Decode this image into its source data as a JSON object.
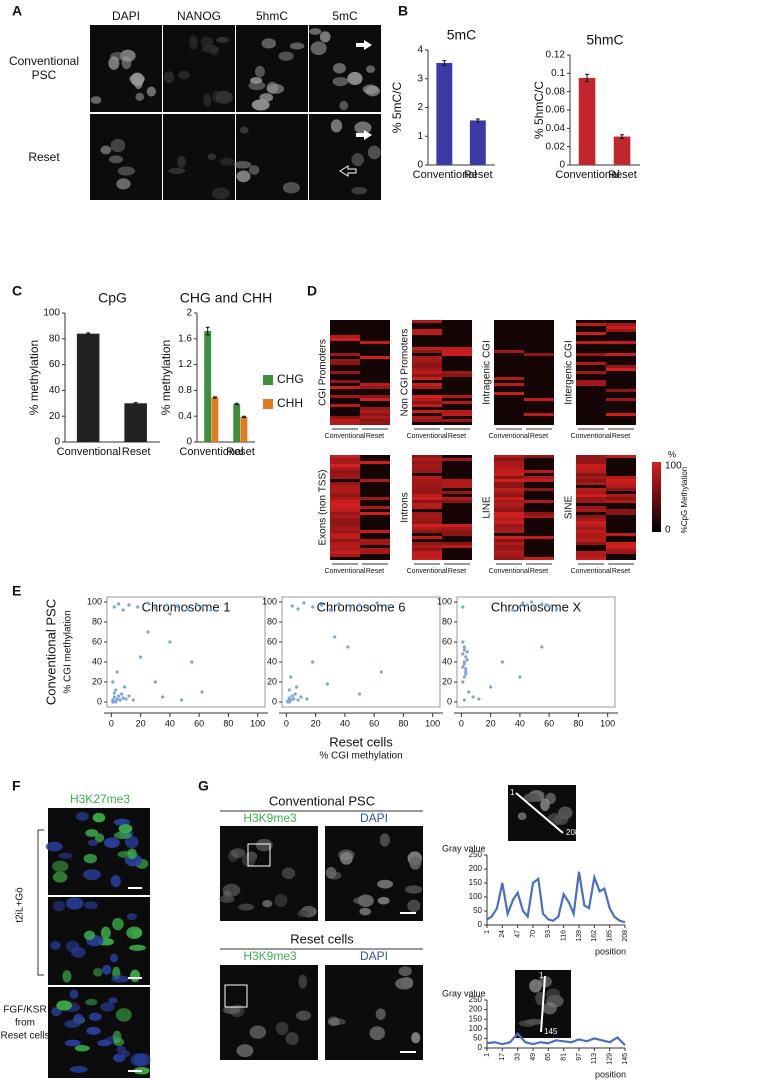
{
  "panel_letters": [
    "A",
    "B",
    "C",
    "D",
    "E",
    "F",
    "G"
  ],
  "panel_a": {
    "columns": [
      "DAPI",
      "NANOG",
      "5hmC",
      "5mC"
    ],
    "rows": [
      [
        "Conventional",
        "PSC"
      ],
      [
        "Reset"
      ]
    ]
  },
  "panel_d": {
    "heatmaps": [
      "CGI Promoters",
      "Non CGI Promoters",
      "Intragenic CGI",
      "Intergenic CGI",
      "Exons (non TSS)",
      "Introns",
      "LINE",
      "SINE"
    ],
    "columns": [
      "Conventional",
      "Reset"
    ],
    "colorbar": {
      "unit": "%",
      "max": 100,
      "min": 0,
      "label": "%CpG Methylation"
    }
  },
  "panel_f": {
    "title": "H3K27me3",
    "groups": [
      [
        "t2iL+Gö"
      ],
      [
        "FGF/KSR",
        "from",
        "Reset cells"
      ]
    ]
  },
  "panel_g": {
    "sections": [
      {
        "title": "Conventional PSC",
        "stains": [
          "H3K9me3",
          "DAPI"
        ],
        "profile_ends": [
          1,
          208
        ]
      },
      {
        "title": "Reset cells",
        "stains": [
          "H3K9me3",
          "DAPI"
        ],
        "profile_ends": [
          1,
          145
        ]
      }
    ]
  },
  "chart_data": [
    {
      "type": "bar",
      "title": "5mC",
      "ylabel": "% 5mC/C",
      "categories": [
        "Conventional",
        "Reset"
      ],
      "values": [
        3.55,
        1.55
      ],
      "errors": [
        0.08,
        0.05
      ],
      "color": "#3b3ba6",
      "ylim": [
        0,
        4
      ],
      "yticks": [
        0,
        1,
        2,
        3,
        4
      ]
    },
    {
      "type": "bar",
      "title": "5hmC",
      "ylabel": "% 5hmC/C",
      "categories": [
        "Conventional",
        "Reset"
      ],
      "values": [
        0.095,
        0.031
      ],
      "errors": [
        0.004,
        0.002
      ],
      "color": "#c1272d",
      "ylim": [
        0,
        0.12
      ],
      "yticks": [
        0,
        0.02,
        0.04,
        0.06,
        0.08,
        0.1,
        0.12
      ]
    },
    {
      "type": "bar",
      "title": "CpG",
      "ylabel": "% methylation",
      "categories": [
        "Conventional",
        "Reset"
      ],
      "values": [
        84,
        30
      ],
      "errors": [
        0.6,
        0.5
      ],
      "color": "#222222",
      "ylim": [
        0,
        100
      ],
      "yticks": [
        0,
        20,
        40,
        60,
        80,
        100
      ]
    },
    {
      "type": "bar",
      "title": "CHG and CHH",
      "ylabel": "% methylation",
      "categories": [
        "Conventional",
        "Reset"
      ],
      "series": [
        {
          "name": "CHG",
          "color": "#3d8f3d",
          "values": [
            1.72,
            0.59
          ],
          "errors": [
            0.06,
            0.01
          ]
        },
        {
          "name": "CHH",
          "color": "#e07b22",
          "values": [
            0.69,
            0.39
          ],
          "errors": [
            0.01,
            0.01
          ]
        }
      ],
      "ylim": [
        0,
        2
      ],
      "yticks": [
        0,
        0.4,
        0.8,
        1.2,
        1.6,
        2
      ]
    },
    {
      "type": "scatter",
      "title": "Chromosome 1",
      "ylabel": [
        "Conventional PSC",
        "% CGI methylation"
      ],
      "xlabel": [
        "Reset cells",
        "% CGI methylation"
      ],
      "color": "#7aa6d8",
      "x": [
        1,
        2,
        3,
        4,
        5,
        2,
        6,
        8,
        3,
        7,
        10,
        1,
        4,
        12,
        15,
        9,
        20,
        30,
        40,
        55,
        62,
        35,
        48,
        25,
        2,
        5,
        8,
        12,
        18,
        25,
        30,
        38,
        45,
        52,
        58,
        62,
        68,
        40,
        1,
        3
      ],
      "values": [
        2,
        5,
        1,
        3,
        6,
        9,
        2,
        4,
        12,
        8,
        3,
        20,
        30,
        6,
        2,
        15,
        45,
        20,
        60,
        40,
        10,
        5,
        2,
        70,
        95,
        98,
        92,
        97,
        95,
        99,
        94,
        97,
        96,
        93,
        98,
        95,
        92,
        88,
        0,
        0
      ],
      "xlim": [
        -3,
        105
      ],
      "xticks": [
        0,
        20,
        40,
        60,
        80,
        100
      ],
      "ylim": [
        -5,
        105
      ],
      "yticks": [
        0,
        20,
        40,
        60,
        80,
        100
      ]
    },
    {
      "type": "scatter",
      "title": "Chromosome 6",
      "color": "#7aa6d8",
      "x": [
        1,
        2,
        3,
        4,
        5,
        6,
        8,
        2,
        10,
        3,
        7,
        14,
        18,
        28,
        42,
        50,
        65,
        33,
        4,
        8,
        12,
        18,
        24,
        30,
        36,
        44,
        50,
        56,
        62,
        70,
        1,
        2
      ],
      "values": [
        1,
        4,
        2,
        6,
        3,
        8,
        2,
        12,
        5,
        25,
        15,
        3,
        40,
        18,
        55,
        8,
        30,
        65,
        96,
        93,
        99,
        95,
        97,
        92,
        98,
        94,
        97,
        95,
        99,
        96,
        0,
        0
      ],
      "xlim": [
        -3,
        105
      ],
      "xticks": [
        0,
        20,
        40,
        60,
        80,
        100
      ],
      "ylim": [
        -5,
        105
      ],
      "yticks": [
        0,
        20,
        40,
        60,
        80,
        100
      ]
    },
    {
      "type": "scatter",
      "title": "Chromosome X",
      "color": "#7aa6d8",
      "x": [
        1,
        2,
        3,
        1,
        2,
        3,
        4,
        2,
        1,
        3,
        2,
        4,
        1,
        2,
        3,
        5,
        8,
        12,
        20,
        28,
        40,
        55,
        35,
        40,
        45,
        50,
        55,
        60,
        65,
        42,
        48,
        58,
        1,
        2
      ],
      "values": [
        20,
        25,
        30,
        35,
        40,
        45,
        50,
        55,
        60,
        28,
        38,
        42,
        48,
        52,
        33,
        10,
        5,
        3,
        15,
        40,
        25,
        55,
        92,
        95,
        97,
        94,
        98,
        96,
        93,
        99,
        100,
        97,
        95,
        2
      ],
      "xlim": [
        -3,
        105
      ],
      "xticks": [
        0,
        20,
        40,
        60,
        80,
        100
      ],
      "ylim": [
        -5,
        105
      ],
      "yticks": [
        0,
        20,
        40,
        60,
        80,
        100
      ]
    },
    {
      "type": "line",
      "ylabel": "Gray value",
      "xlabel": "position",
      "color": "#4a6fc0",
      "x": [
        1,
        8,
        16,
        24,
        32,
        40,
        47,
        55,
        62,
        70,
        78,
        85,
        93,
        100,
        108,
        116,
        124,
        131,
        139,
        147,
        154,
        162,
        170,
        177,
        185,
        192,
        200,
        208
      ],
      "values": [
        20,
        30,
        60,
        150,
        40,
        90,
        115,
        50,
        30,
        150,
        165,
        40,
        20,
        15,
        30,
        110,
        80,
        40,
        190,
        70,
        60,
        170,
        120,
        130,
        60,
        30,
        15,
        10
      ],
      "xlim": [
        1,
        208
      ],
      "xticks": [
        1,
        24,
        47,
        70,
        93,
        116,
        139,
        162,
        185,
        208
      ],
      "ylim": [
        0,
        250
      ],
      "yticks": [
        0,
        50,
        100,
        150,
        200,
        250
      ]
    },
    {
      "type": "line",
      "ylabel": "Gray value",
      "xlabel": "position",
      "color": "#4a6fc0",
      "x": [
        1,
        9,
        17,
        25,
        33,
        41,
        49,
        57,
        65,
        73,
        81,
        89,
        97,
        105,
        113,
        121,
        129,
        137,
        145
      ],
      "values": [
        25,
        30,
        20,
        30,
        75,
        30,
        20,
        30,
        25,
        40,
        35,
        30,
        45,
        35,
        50,
        40,
        30,
        55,
        15
      ],
      "xlim": [
        1,
        145
      ],
      "xticks": [
        1,
        17,
        33,
        49,
        65,
        81,
        97,
        113,
        129,
        145
      ],
      "ylim": [
        0,
        250
      ],
      "yticks": [
        0,
        50,
        100,
        150,
        200,
        250
      ]
    }
  ]
}
